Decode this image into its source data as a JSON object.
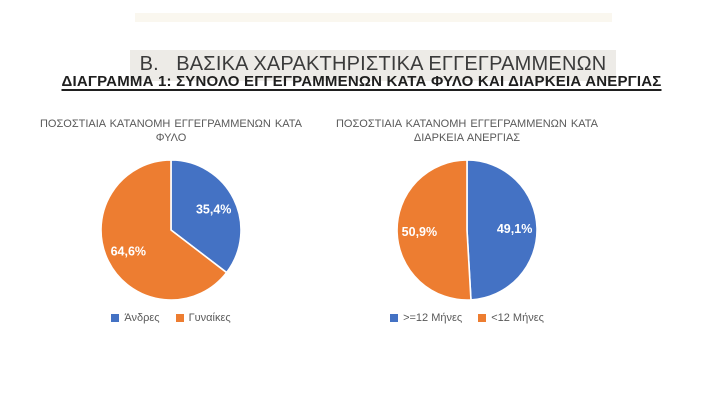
{
  "page": {
    "section_title": "Β.   ΒΑΣΙΚΑ ΧΑΡΑΚΤΗΡΙΣΤΙΚΑ ΕΓΓΕΓΡΑΜΜΕΝΩΝ",
    "diagram_title": "ΔΙΑΓΡΑΜΜΑ 1: ΣΥΝΟΛΟ ΕΓΓΕΓΡΑΜΜΕΝΩΝ ΚΑΤΑ ΦΥΛΟ ΚΑΙ ΔΙΑΡΚΕΙΑ ΑΝΕΡΓΙΑΣ"
  },
  "colors": {
    "series_blue": "#4472C4",
    "series_orange": "#ED7D31",
    "chart_text_gray": "#595959",
    "title_highlight": "#edebe7"
  },
  "chart_data": [
    {
      "type": "pie",
      "title": "ΠΟΣΟΣΤΙΑΙΑ ΚΑΤΑΝΟΜΗ ΕΓΓΕΓΡΑΜΜΕΝΩΝ ΚΑΤΑ ΦΥΛΟ",
      "labels": [
        "Άνδρες",
        "Γυναίκες"
      ],
      "values": [
        35.4,
        64.6
      ],
      "value_labels": [
        "35,4%",
        "64,6%"
      ],
      "colors": [
        "#4472C4",
        "#ED7D31"
      ],
      "start_angle_deg": 0,
      "direction": "clockwise",
      "legend_position": "bottom"
    },
    {
      "type": "pie",
      "title": "ΠΟΣΟΣΤΙΑΙΑ ΚΑΤΑΝΟΜΗ ΕΓΓΕΓΡΑΜΜΕΝΩΝ ΚΑΤΑ ΔΙΑΡΚΕΙΑ ΑΝΕΡΓΙΑΣ",
      "labels": [
        ">=12 Μήνες",
        "<12 Μήνες"
      ],
      "values": [
        49.1,
        50.9
      ],
      "value_labels": [
        "49,1%",
        "50,9%"
      ],
      "colors": [
        "#4472C4",
        "#ED7D31"
      ],
      "start_angle_deg": 0,
      "direction": "clockwise",
      "legend_position": "bottom"
    }
  ]
}
